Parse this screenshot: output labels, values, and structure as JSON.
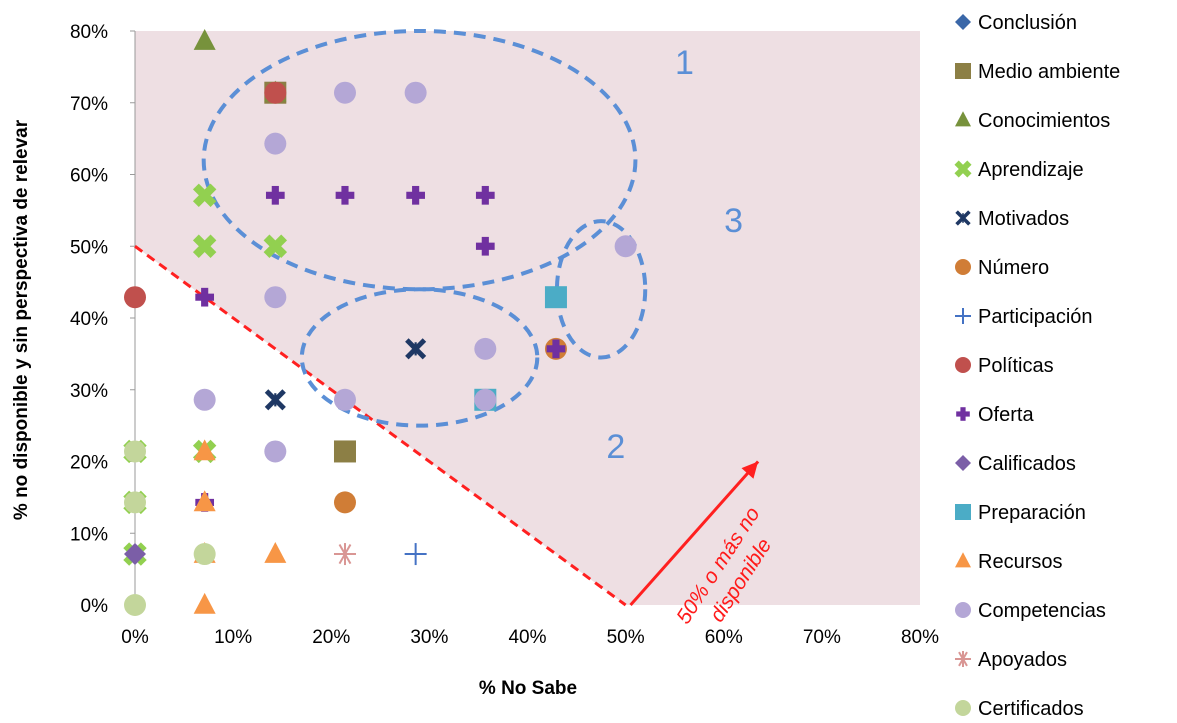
{
  "chart_data": {
    "type": "scatter",
    "xlabel": "% No Sabe",
    "ylabel": "% no disponible y sin perspectiva de relevar",
    "xlim": [
      0,
      0.8
    ],
    "ylim": [
      0,
      0.8
    ],
    "x_ticks": [
      "0%",
      "10%",
      "20%",
      "30%",
      "40%",
      "50%",
      "60%",
      "70%",
      "80%"
    ],
    "y_ticks": [
      "0%",
      "10%",
      "20%",
      "30%",
      "40%",
      "50%",
      "60%",
      "70%",
      "80%"
    ],
    "legend_position": "right",
    "shaded_region": "50% o más no disponible",
    "colors": {
      "shade": "#eedfe3",
      "threshold_line": "#ff2020",
      "cluster_outline": "#5b8fd6"
    },
    "annotations": {
      "cluster_1": "1",
      "cluster_2": "2",
      "cluster_3": "3",
      "arrow_line1": "50% o más no",
      "arrow_line2": "disponible"
    },
    "clusters": [
      {
        "label": "1",
        "cx": 0.29,
        "cy": 0.62,
        "rx": 0.22,
        "ry": 0.18
      },
      {
        "label": "2",
        "cx": 0.29,
        "cy": 0.345,
        "rx": 0.12,
        "ry": 0.095
      },
      {
        "label": "3",
        "cx": 0.475,
        "cy": 0.44,
        "rx": 0.045,
        "ry": 0.095
      }
    ],
    "series": [
      {
        "name": "Conclusión",
        "marker": "diamond",
        "color": "#3a67a8",
        "points": []
      },
      {
        "name": "Medio ambiente",
        "marker": "square",
        "color": "#8c7f45",
        "points": [
          [
            0.143,
            0.714
          ],
          [
            0.214,
            0.214
          ]
        ]
      },
      {
        "name": "Conocimientos",
        "marker": "triangle",
        "color": "#77923c",
        "points": [
          [
            0.071,
            0.786
          ],
          [
            0.143,
            0.714
          ]
        ]
      },
      {
        "name": "Aprendizaje",
        "marker": "x-thick",
        "color": "#92d050",
        "points": [
          [
            0.071,
            0.571
          ],
          [
            0.071,
            0.5
          ],
          [
            0.143,
            0.5
          ],
          [
            0.071,
            0.214
          ],
          [
            0.0,
            0.214
          ],
          [
            0.0,
            0.143
          ],
          [
            0.0,
            0.071
          ]
        ]
      },
      {
        "name": "Motivados",
        "marker": "star-x",
        "color": "#1f3864",
        "points": [
          [
            0.286,
            0.357
          ],
          [
            0.143,
            0.286
          ]
        ]
      },
      {
        "name": "Número",
        "marker": "circle",
        "color": "#d07d36",
        "points": [
          [
            0.429,
            0.357
          ],
          [
            0.214,
            0.143
          ]
        ]
      },
      {
        "name": "Participación",
        "marker": "plus-thin",
        "color": "#4472c4",
        "points": [
          [
            0.286,
            0.071
          ]
        ]
      },
      {
        "name": "Políticas",
        "marker": "circle",
        "color": "#c0504d",
        "points": [
          [
            0.143,
            0.714
          ],
          [
            0.0,
            0.429
          ]
        ]
      },
      {
        "name": "Oferta",
        "marker": "plus-thick",
        "color": "#7030a0",
        "points": [
          [
            0.143,
            0.643
          ],
          [
            0.143,
            0.571
          ],
          [
            0.214,
            0.571
          ],
          [
            0.286,
            0.571
          ],
          [
            0.357,
            0.571
          ],
          [
            0.357,
            0.5
          ],
          [
            0.071,
            0.429
          ],
          [
            0.357,
            0.357
          ],
          [
            0.429,
            0.357
          ],
          [
            0.214,
            0.286
          ],
          [
            0.071,
            0.143
          ],
          [
            0.071,
            0.071
          ]
        ]
      },
      {
        "name": "Calificados",
        "marker": "diamond",
        "color": "#7b5ea7",
        "points": [
          [
            0.0,
            0.071
          ]
        ]
      },
      {
        "name": "Preparación",
        "marker": "square",
        "color": "#4bacc6",
        "points": [
          [
            0.429,
            0.429
          ],
          [
            0.357,
            0.286
          ]
        ]
      },
      {
        "name": "Recursos",
        "marker": "triangle",
        "color": "#f79646",
        "points": [
          [
            0.071,
            0.214
          ],
          [
            0.071,
            0.143
          ],
          [
            0.071,
            0.071
          ],
          [
            0.143,
            0.071
          ],
          [
            0.071,
            0.0
          ]
        ]
      },
      {
        "name": "Competencias",
        "marker": "circle",
        "color": "#b4a7d6",
        "points": [
          [
            0.214,
            0.714
          ],
          [
            0.286,
            0.714
          ],
          [
            0.143,
            0.643
          ],
          [
            0.143,
            0.429
          ],
          [
            0.357,
            0.357
          ],
          [
            0.5,
            0.5
          ],
          [
            0.357,
            0.286
          ],
          [
            0.214,
            0.286
          ],
          [
            0.071,
            0.286
          ],
          [
            0.143,
            0.214
          ]
        ]
      },
      {
        "name": "Apoyados",
        "marker": "asterisk",
        "color": "#d99694",
        "points": [
          [
            0.214,
            0.071
          ]
        ]
      },
      {
        "name": "Certificados",
        "marker": "circle",
        "color": "#c3d69b",
        "points": [
          [
            0.0,
            0.214
          ],
          [
            0.0,
            0.143
          ],
          [
            0.071,
            0.071
          ],
          [
            0.0,
            0.0
          ]
        ]
      }
    ]
  }
}
